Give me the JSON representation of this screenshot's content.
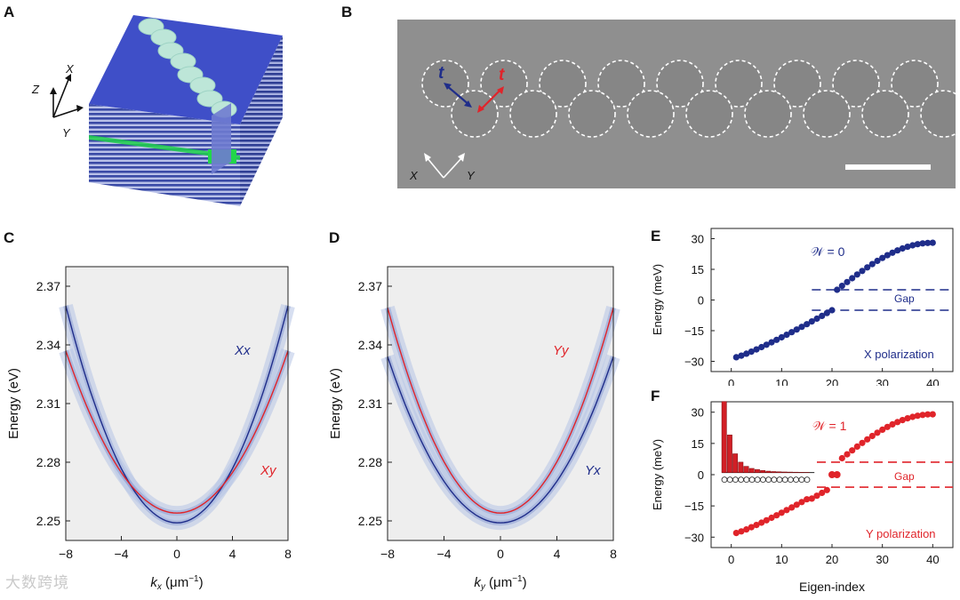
{
  "panels": {
    "A": "A",
    "B": "B",
    "C": "C",
    "D": "D",
    "E": "E",
    "F": "F"
  },
  "panelA": {
    "axis_z": "Z",
    "axis_x": "X",
    "axis_y": "Y",
    "colors": {
      "top": "#3f4fc8",
      "layers_dark": "#3a4aa6",
      "layers_light": "#b9c1e8",
      "circles": "#bde6d8",
      "green": "#22d64a"
    }
  },
  "panelB": {
    "label_t_blue": "t",
    "label_t_red": "t",
    "axis_x": "X",
    "axis_y": "Y",
    "colors": {
      "sem": "#8f8f8f",
      "circle": "#ffffff",
      "blue": "#1f2d8a",
      "red": "#e0242a"
    },
    "circle_count_top": 9,
    "circle_count_bottom": 9
  },
  "panelC": {
    "ylabel": "Energy (eV)",
    "xlabel_main": "k",
    "xlabel_sub": "x",
    "xlabel_unit": " (μm",
    "xlabel_exp": "−1",
    "xlabel_close": ")",
    "yticks": [
      "2.37",
      "2.34",
      "2.31",
      "2.28",
      "2.25"
    ],
    "xticks": [
      "−8",
      "−4",
      "0",
      "4",
      "8"
    ],
    "legend_blue": "Xx",
    "legend_red": "Xy"
  },
  "panelD": {
    "ylabel": "Energy (eV)",
    "xlabel_main": "k",
    "xlabel_sub": "y",
    "xlabel_unit": " (μm",
    "xlabel_exp": "−1",
    "xlabel_close": ")",
    "yticks": [
      "2.37",
      "2.34",
      "2.31",
      "2.28",
      "2.25"
    ],
    "xticks": [
      "−8",
      "−4",
      "0",
      "4",
      "8"
    ],
    "legend_red": "Yy",
    "legend_blue": "Yx"
  },
  "panelE": {
    "ylabel": "Energy (meV)",
    "yticks": [
      "30",
      "15",
      "0",
      "−15",
      "−30"
    ],
    "xticks": [
      "0",
      "10",
      "20",
      "30",
      "40"
    ],
    "winding": "𝒲 = 0",
    "gap": "Gap",
    "pol": "X polarization"
  },
  "panelF": {
    "ylabel": "Energy (meV)",
    "yticks": [
      "30",
      "15",
      "0",
      "−15",
      "−30"
    ],
    "xticks": [
      "0",
      "10",
      "20",
      "30",
      "40"
    ],
    "winding": "𝒲 = 1",
    "gap": "Gap",
    "pol": "Y polarization",
    "xlabel": "Eigen-index"
  },
  "watermark": "大数跨境",
  "chart_data": [
    {
      "type": "line",
      "panel": "C",
      "title": "",
      "xlabel": "kx (μm−1)",
      "ylabel": "Energy (eV)",
      "xlim": [
        -8,
        8
      ],
      "ylim": [
        2.24,
        2.38
      ],
      "series": [
        {
          "name": "Xx",
          "color": "#1f2d8a",
          "x": [
            -8,
            -6,
            -4,
            -2,
            0,
            2,
            4,
            6,
            8
          ],
          "values": [
            2.36,
            2.326,
            2.295,
            2.265,
            2.249,
            2.265,
            2.295,
            2.326,
            2.36
          ]
        },
        {
          "name": "Xy",
          "color": "#e0242a",
          "x": [
            -8,
            -6,
            -4,
            -2,
            0,
            2,
            4,
            6,
            8
          ],
          "values": [
            2.337,
            2.31,
            2.287,
            2.265,
            2.254,
            2.265,
            2.287,
            2.31,
            2.337
          ]
        }
      ]
    },
    {
      "type": "line",
      "panel": "D",
      "title": "",
      "xlabel": "ky (μm−1)",
      "ylabel": "Energy (eV)",
      "xlim": [
        -8,
        8
      ],
      "ylim": [
        2.24,
        2.38
      ],
      "series": [
        {
          "name": "Yy",
          "color": "#e0242a",
          "x": [
            -8,
            -6,
            -4,
            -2,
            0,
            2,
            4,
            6,
            8
          ],
          "values": [
            2.359,
            2.324,
            2.293,
            2.268,
            2.254,
            2.268,
            2.293,
            2.324,
            2.359
          ]
        },
        {
          "name": "Yx",
          "color": "#1f2d8a",
          "x": [
            -8,
            -6,
            -4,
            -2,
            0,
            2,
            4,
            6,
            8
          ],
          "values": [
            2.334,
            2.307,
            2.283,
            2.262,
            2.249,
            2.262,
            2.283,
            2.307,
            2.334
          ]
        }
      ]
    },
    {
      "type": "scatter",
      "panel": "E",
      "xlabel": "",
      "ylabel": "Energy (meV)",
      "xlim": [
        -4,
        44
      ],
      "ylim": [
        -35,
        35
      ],
      "series": [
        {
          "name": "X polarization",
          "color": "#1f2d8a",
          "x": [
            1,
            40
          ],
          "values": [
            -28,
            28
          ]
        }
      ],
      "gap_lines": [
        5,
        -5
      ]
    },
    {
      "type": "scatter",
      "panel": "F",
      "xlabel": "Eigen-index",
      "ylabel": "Energy (meV)",
      "xlim": [
        -4,
        44
      ],
      "ylim": [
        -35,
        35
      ],
      "series": [
        {
          "name": "Y polarization",
          "color": "#e0242a",
          "x": [
            1,
            40
          ],
          "values": [
            -28,
            28
          ]
        }
      ],
      "gap_lines": [
        6,
        -6
      ],
      "edge_states": [
        {
          "x": 20,
          "value": 0
        },
        {
          "x": 21,
          "value": 0
        }
      ],
      "inset_bars": [
        34,
        18,
        9,
        5,
        3,
        2,
        1.5,
        1,
        0.7,
        0.5,
        0.4,
        0.3,
        0.25,
        0.2,
        0.15,
        0.1
      ]
    }
  ]
}
